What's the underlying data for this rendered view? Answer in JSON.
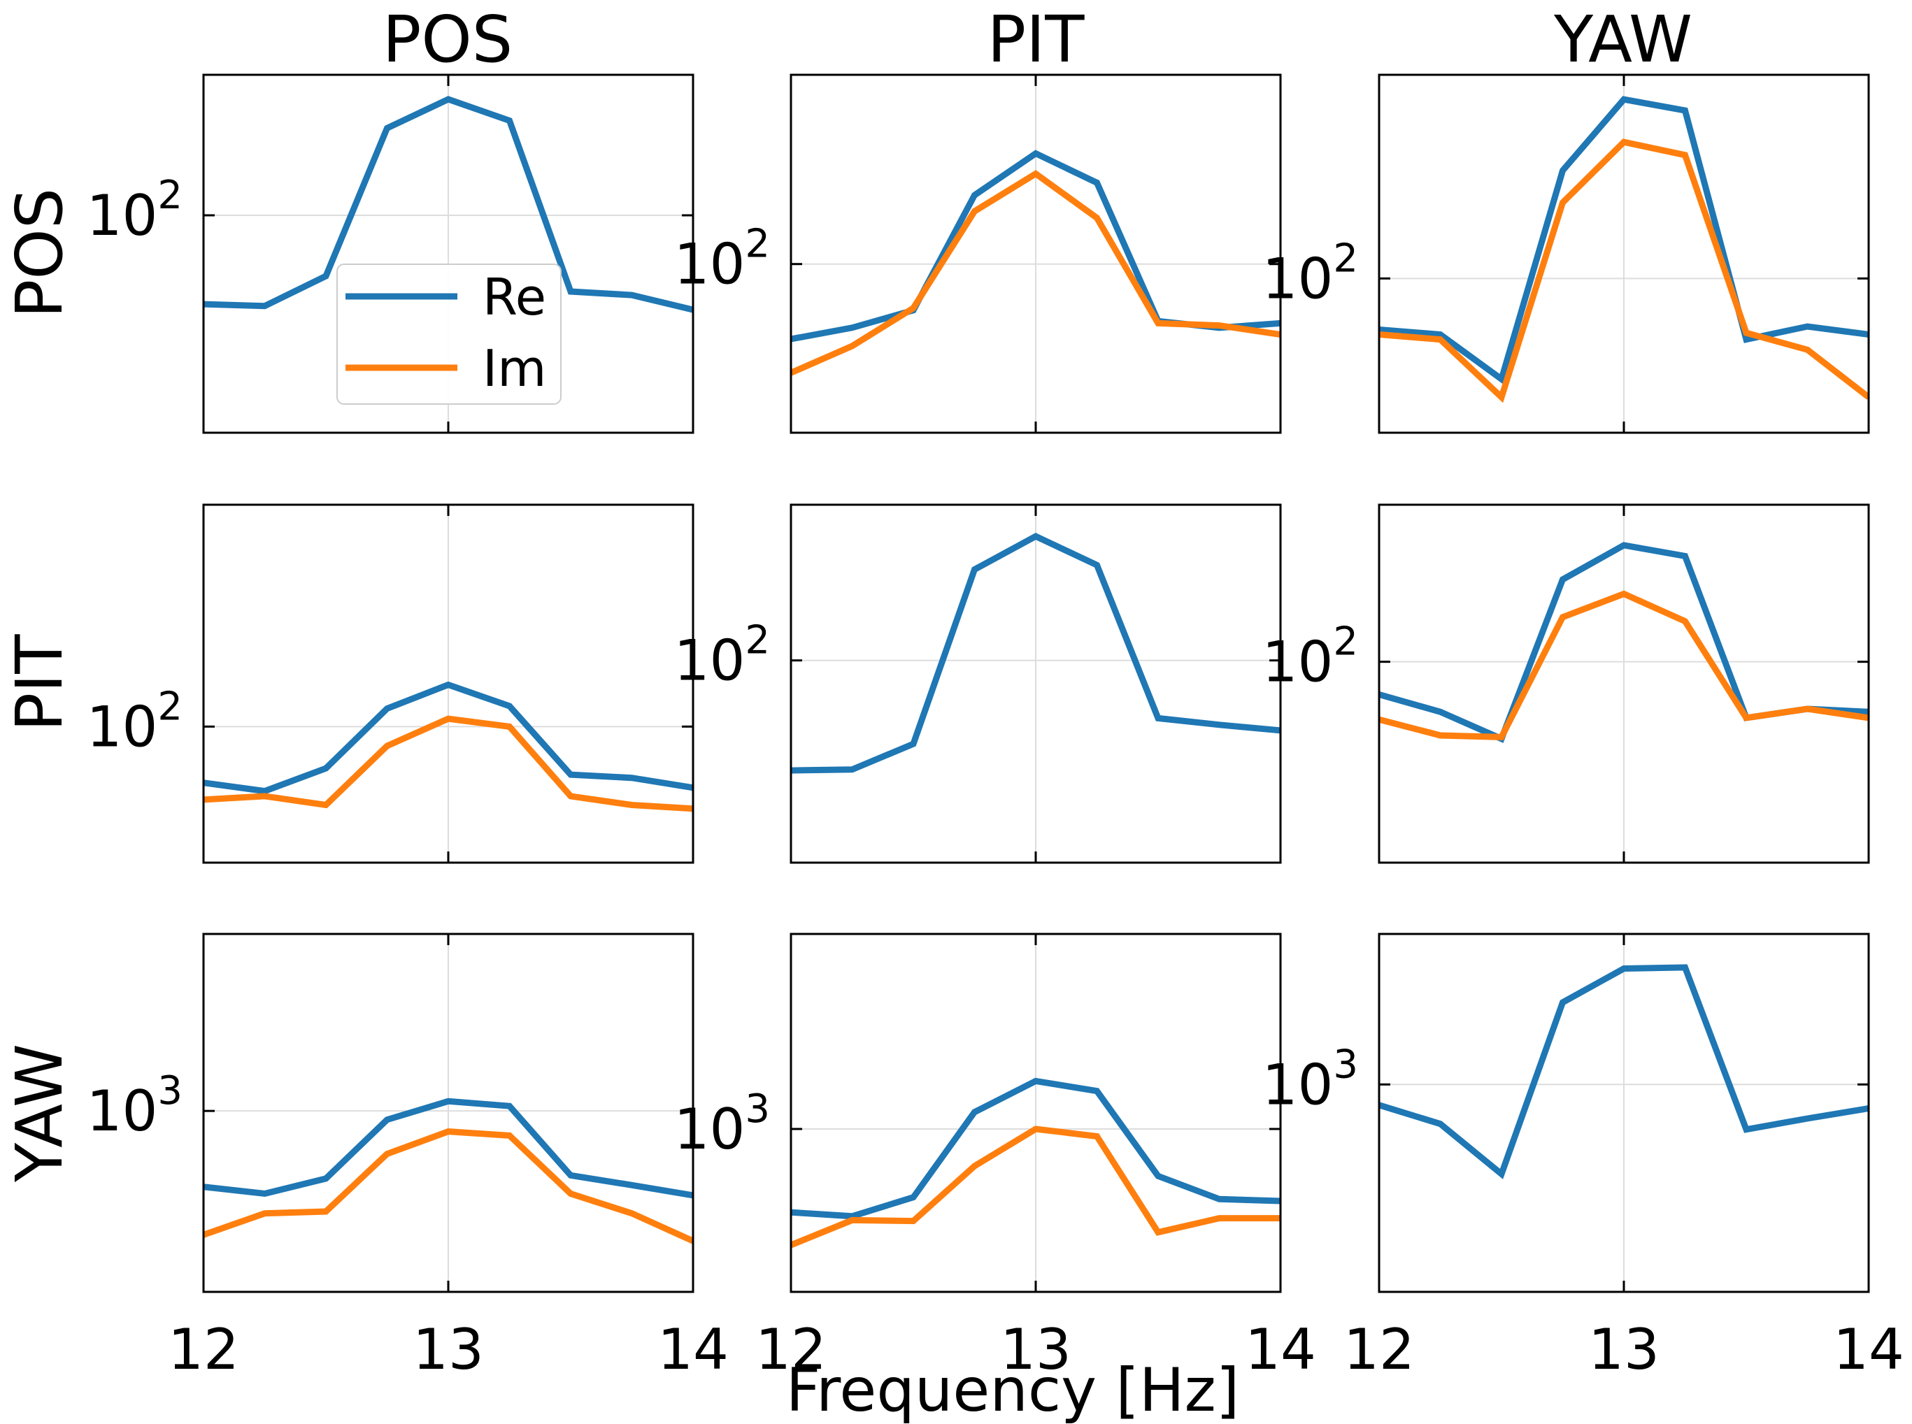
{
  "chart_data": {
    "type": "line",
    "layout": "3x3 grid",
    "column_titles": [
      "POS",
      "PIT",
      "YAW"
    ],
    "row_titles": [
      "POS",
      "PIT",
      "YAW"
    ],
    "xlabel": "Frequency [Hz]",
    "xlim": [
      12,
      14
    ],
    "xticks": [
      "12",
      "13",
      "14"
    ],
    "y_scale": "log",
    "grid": true,
    "legend": {
      "placement": "left-center of top-left panel",
      "entries": [
        "Re",
        "Im"
      ]
    },
    "colors": {
      "Re": "#1f77b4",
      "Im": "#ff7f0e",
      "grid": "#dddddd",
      "axes": "#000000"
    },
    "x": [
      12.0,
      12.25,
      12.5,
      12.75,
      13.0,
      13.25,
      13.5,
      13.75,
      14.0
    ],
    "panels": [
      {
        "row": "POS",
        "col": "POS",
        "ylim": [
          44,
          170
        ],
        "ytick_label": {
          "base": "10",
          "exp": "2"
        },
        "ytick_value": 100,
        "series": [
          {
            "name": "Re",
            "values": [
              71.5,
              71.0,
              79.5,
              139,
              155,
              143,
              75.0,
              74.0,
              70.0
            ]
          }
        ]
      },
      {
        "row": "POS",
        "col": "PIT",
        "ylim": [
          64,
          165
        ],
        "ytick_label": {
          "base": "10",
          "exp": "2"
        },
        "ytick_value": 100,
        "series": [
          {
            "name": "Re",
            "values": [
              82.0,
              84.5,
              88.5,
              120,
              134,
              124,
              86.0,
              84.5,
              85.5
            ]
          },
          {
            "name": "Im",
            "values": [
              75.0,
              80.5,
              89.0,
              115,
              127,
              113,
              85.5,
              85.0,
              83.0
            ]
          }
        ]
      },
      {
        "row": "POS",
        "col": "YAW",
        "ylim": [
          56,
          215
        ],
        "ytick_label": {
          "base": "10",
          "exp": "2"
        },
        "ytick_value": 100,
        "series": [
          {
            "name": "Re",
            "values": [
              82.5,
              81.0,
              68.5,
              150,
              196,
              188,
              79.5,
              83.5,
              81.0
            ]
          },
          {
            "name": "Im",
            "values": [
              81.0,
              79.5,
              64.0,
              133,
              167,
              159,
              81.5,
              76.5,
              64.0
            ]
          }
        ]
      },
      {
        "row": "PIT",
        "col": "POS",
        "ylim": [
          60,
          230
        ],
        "ytick_label": {
          "base": "10",
          "exp": "2"
        },
        "ytick_value": 100,
        "series": [
          {
            "name": "Re",
            "values": [
              81.0,
              78.5,
              85.5,
              107,
              117,
              108,
              83.5,
              82.5,
              79.5
            ]
          },
          {
            "name": "Im",
            "values": [
              76.0,
              77.0,
              74.5,
              93.0,
              103,
              100,
              77.0,
              74.5,
              73.5
            ]
          }
        ]
      },
      {
        "row": "PIT",
        "col": "PIT",
        "ylim": [
          24,
          300
        ],
        "ytick_label": {
          "base": "10",
          "exp": "2"
        },
        "ytick_value": 100,
        "series": [
          {
            "name": "Re",
            "values": [
              46.0,
              46.3,
              55.5,
              190,
              240,
              196,
              66.5,
              63.5,
              61.0
            ]
          }
        ]
      },
      {
        "row": "PIT",
        "col": "YAW",
        "ylim": [
          44,
          190
        ],
        "ytick_label": {
          "base": "10",
          "exp": "2"
        },
        "ytick_value": 100,
        "series": [
          {
            "name": "Re",
            "values": [
              87.5,
              81.5,
              73.0,
              140,
              161,
              154,
              79.5,
              82.5,
              81.5
            ]
          },
          {
            "name": "Im",
            "values": [
              79.0,
              74.0,
              73.5,
              120,
              132,
              118,
              79.5,
              82.5,
              79.5
            ]
          }
        ]
      },
      {
        "row": "YAW",
        "col": "POS",
        "ylim": [
          480,
          2050
        ],
        "ytick_label": {
          "base": "10",
          "exp": "3"
        },
        "ytick_value": 1000,
        "series": [
          {
            "name": "Re",
            "values": [
              735,
              715,
              760,
              965,
              1040,
              1020,
              770,
              740,
              710
            ]
          },
          {
            "name": "Im",
            "values": [
              605,
              660,
              665,
              840,
              920,
              905,
              715,
              660,
              590
            ]
          }
        ]
      },
      {
        "row": "YAW",
        "col": "PIT",
        "ylim": [
          570,
          1960
        ],
        "ytick_label": {
          "base": "10",
          "exp": "3"
        },
        "ytick_value": 1000,
        "series": [
          {
            "name": "Re",
            "values": [
              750,
              740,
              790,
              1060,
              1180,
              1140,
              850,
              785,
              780
            ]
          },
          {
            "name": "Im",
            "values": [
              670,
              730,
              728,
              880,
              1000,
              975,
              700,
              735,
              735
            ]
          }
        ]
      },
      {
        "row": "YAW",
        "col": "YAW",
        "ylim": [
          220,
          3000
        ],
        "ytick_label": {
          "base": "10",
          "exp": "3"
        },
        "ytick_value": 1000,
        "series": [
          {
            "name": "Re",
            "values": [
              860,
              750,
              520,
              1820,
              2330,
              2350,
              720,
              780,
              840
            ]
          }
        ]
      }
    ]
  }
}
